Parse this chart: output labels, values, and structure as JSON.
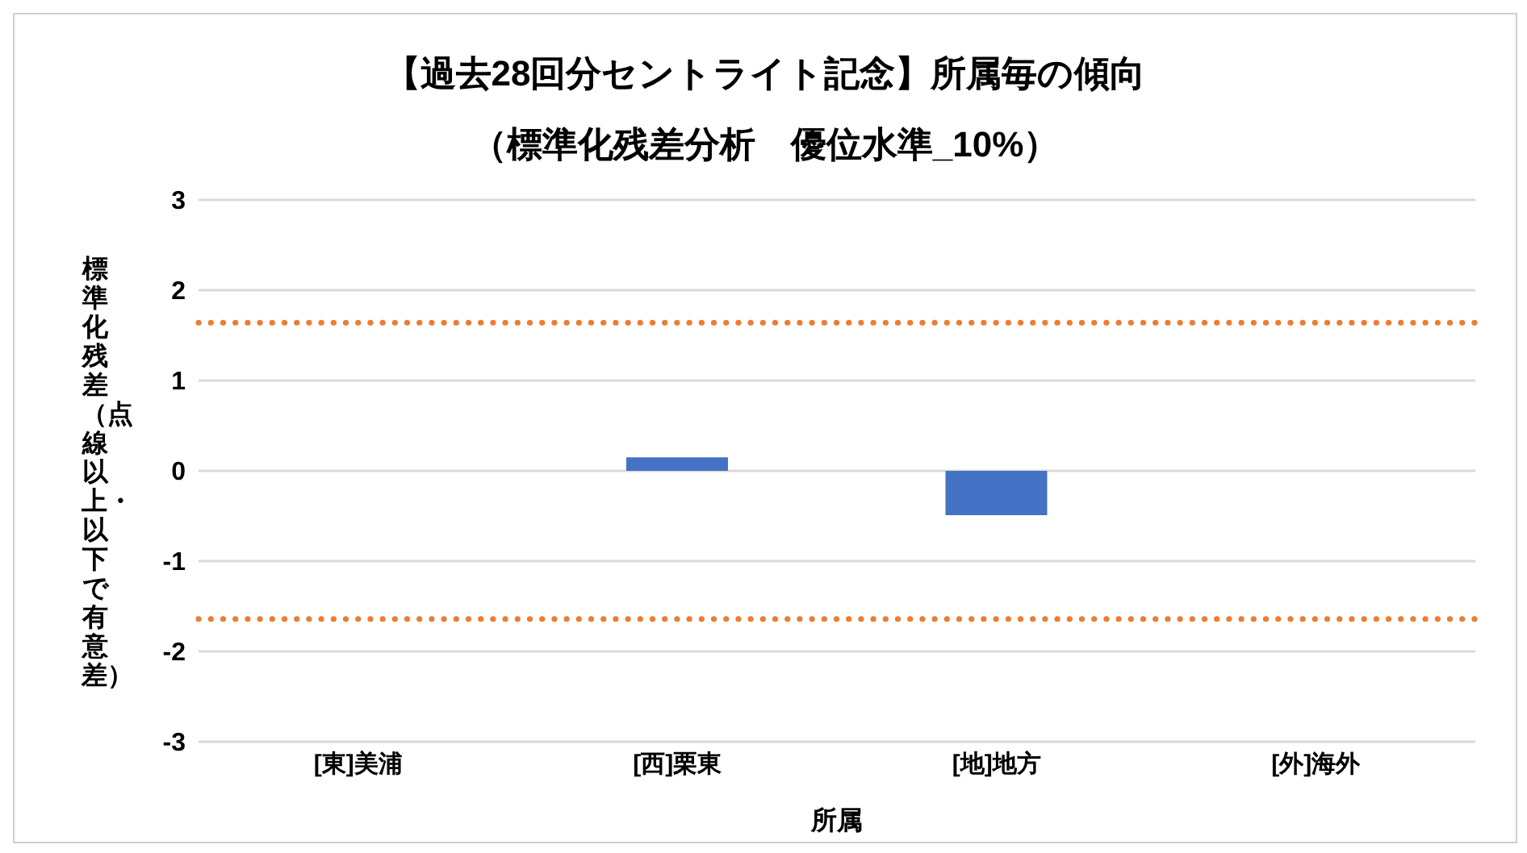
{
  "chart_data": {
    "type": "bar",
    "title": "【過去28回分セントライト記念】所属毎の傾向",
    "subtitle": "（標準化残差分析　優位水準_10%）",
    "xlabel": "所属",
    "ylabel": "標準化残差（点線以上・以下で有意差）",
    "categories": [
      "[東]美浦",
      "[西]栗東",
      "[地]地方",
      "[外]海外"
    ],
    "values": [
      0,
      0.15,
      -0.49,
      0
    ],
    "color": "#4472c4",
    "ylim": [
      -3,
      3
    ],
    "yticks": [
      -3,
      -2,
      -1,
      0,
      1,
      2,
      3
    ],
    "grid": "y",
    "legend": false,
    "ref_lines": [
      {
        "axis": "y",
        "value": 1.64,
        "color": "#ed7d31",
        "line_style": "dotted"
      },
      {
        "axis": "y",
        "value": -1.64,
        "color": "#ed7d31",
        "line_style": "dotted"
      }
    ]
  }
}
